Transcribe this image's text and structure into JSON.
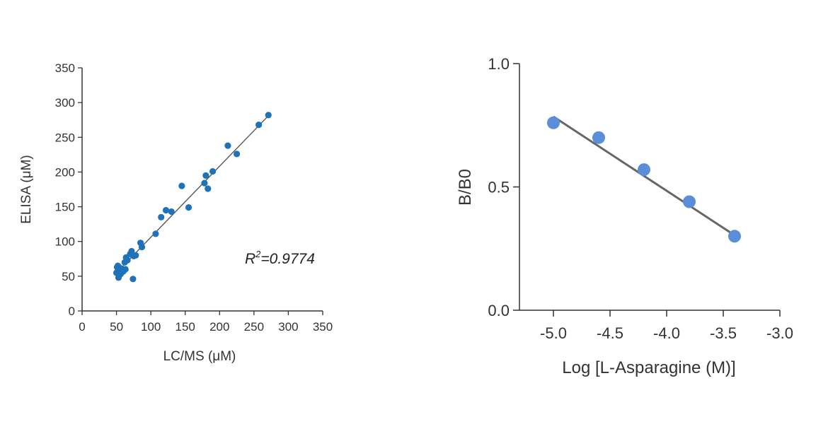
{
  "charts": [
    {
      "chart_data": {
        "type": "scatter",
        "xlabel": "LC/MS (μM)",
        "ylabel": "ELISA (μM)",
        "xlim": [
          0,
          350
        ],
        "ylim": [
          0,
          350
        ],
        "x_ticks": [
          "0",
          "50",
          "100",
          "150",
          "200",
          "250",
          "300",
          "350"
        ],
        "y_ticks": [
          "0",
          "50",
          "100",
          "150",
          "200",
          "250",
          "300",
          "350"
        ],
        "annotation": {
          "r_symbol": "R",
          "superscript": "2",
          "value_text": "=0.9774"
        },
        "points": [
          {
            "x": 50,
            "y": 55
          },
          {
            "x": 51,
            "y": 63
          },
          {
            "x": 52,
            "y": 65
          },
          {
            "x": 53,
            "y": 48
          },
          {
            "x": 54,
            "y": 58
          },
          {
            "x": 55,
            "y": 62
          },
          {
            "x": 56,
            "y": 53
          },
          {
            "x": 58,
            "y": 60
          },
          {
            "x": 60,
            "y": 57
          },
          {
            "x": 62,
            "y": 70
          },
          {
            "x": 63,
            "y": 60
          },
          {
            "x": 64,
            "y": 77
          },
          {
            "x": 66,
            "y": 73
          },
          {
            "x": 70,
            "y": 82
          },
          {
            "x": 72,
            "y": 86
          },
          {
            "x": 74,
            "y": 46
          },
          {
            "x": 75,
            "y": 79
          },
          {
            "x": 78,
            "y": 80
          },
          {
            "x": 85,
            "y": 98
          },
          {
            "x": 87,
            "y": 92
          },
          {
            "x": 107,
            "y": 111
          },
          {
            "x": 115,
            "y": 135
          },
          {
            "x": 122,
            "y": 145
          },
          {
            "x": 130,
            "y": 143
          },
          {
            "x": 145,
            "y": 180
          },
          {
            "x": 155,
            "y": 149
          },
          {
            "x": 178,
            "y": 184
          },
          {
            "x": 180,
            "y": 195
          },
          {
            "x": 183,
            "y": 176
          },
          {
            "x": 190,
            "y": 201
          },
          {
            "x": 212,
            "y": 238
          },
          {
            "x": 225,
            "y": 226
          },
          {
            "x": 257,
            "y": 268
          },
          {
            "x": 271,
            "y": 282
          }
        ],
        "fit_line": [
          [
            50,
            55
          ],
          [
            270,
            280
          ]
        ],
        "point_color": "#1f72b8",
        "line_color": "#555555"
      }
    },
    {
      "chart_data": {
        "type": "line",
        "xlabel": "Log [L-Asparagine (M)]",
        "ylabel": "B/B0",
        "xlim": [
          -5.3,
          -3.0
        ],
        "ylim": [
          0.0,
          1.0
        ],
        "x_ticks": [
          "-5.0",
          "-4.5",
          "-4.0",
          "-3.5",
          "-3.0"
        ],
        "y_ticks": [
          "0.0",
          "0.5",
          "1.0"
        ],
        "points": [
          {
            "x": -5.0,
            "y": 0.76
          },
          {
            "x": -4.6,
            "y": 0.7
          },
          {
            "x": -4.2,
            "y": 0.57
          },
          {
            "x": -3.8,
            "y": 0.44
          },
          {
            "x": -3.4,
            "y": 0.3
          }
        ],
        "fit_line": [
          [
            -5.0,
            0.785
          ],
          [
            -3.42,
            0.31
          ]
        ],
        "point_color": "#5b8ed8",
        "line_color": "#666666"
      }
    }
  ]
}
